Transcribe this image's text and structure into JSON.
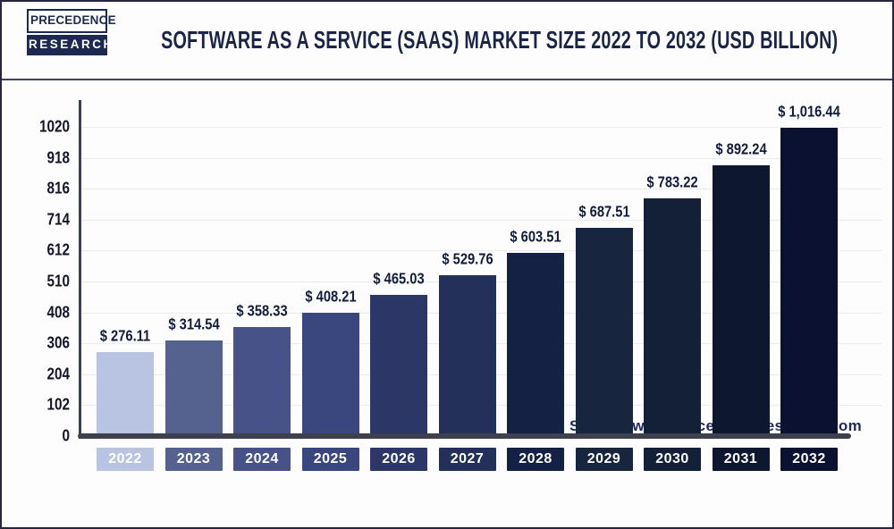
{
  "brand": {
    "line1": "PRECEDENCE",
    "line2": "RESEARCH"
  },
  "header": {
    "title": "SOFTWARE AS A SERVICE (SAAS) MARKET SIZE 2022 TO 2032 (USD BILLION)"
  },
  "source": {
    "label": "Source: www.precedenceresearch.com"
  },
  "colors": {
    "frame_border": "#26263f",
    "divider": "#41415f",
    "axis": "#3d414d",
    "gridline": "#ebecef",
    "title_text": "#1b2547",
    "tick_text": "#15152a",
    "value_text": "#111c38",
    "source_text": "#202a5e",
    "logo_navy": "#1d2950"
  },
  "chart_data": {
    "type": "bar",
    "title": "Software as a Service (SaaS) Market Size 2022 to 2032",
    "unit": "USD Billion",
    "categories": [
      "2022",
      "2023",
      "2024",
      "2025",
      "2026",
      "2027",
      "2028",
      "2029",
      "2030",
      "2031",
      "2032"
    ],
    "values": [
      276.11,
      314.54,
      358.33,
      408.21,
      465.03,
      529.76,
      603.51,
      687.51,
      783.22,
      892.24,
      1016.44
    ],
    "value_labels": [
      "$ 276.11",
      "$ 314.54",
      "$ 358.33",
      "$ 408.21",
      "$ 465.03",
      "$ 529.76",
      "$ 603.51",
      "$ 687.51",
      "$ 783.22",
      "$ 892.24",
      "$ 1,016.44"
    ],
    "bar_colors": [
      "#b9c3e2",
      "#55618e",
      "#475388",
      "#3a477f",
      "#2c3768",
      "#22305a",
      "#142144",
      "#17253e",
      "#141f38",
      "#0e1730",
      "#0b1231"
    ],
    "y_ticks": [
      0,
      102,
      204,
      306,
      408,
      510,
      612,
      714,
      816,
      918,
      1020
    ],
    "ylim": [
      0,
      1020
    ],
    "grid": true,
    "legend": "none",
    "xlabel": "",
    "ylabel": ""
  }
}
